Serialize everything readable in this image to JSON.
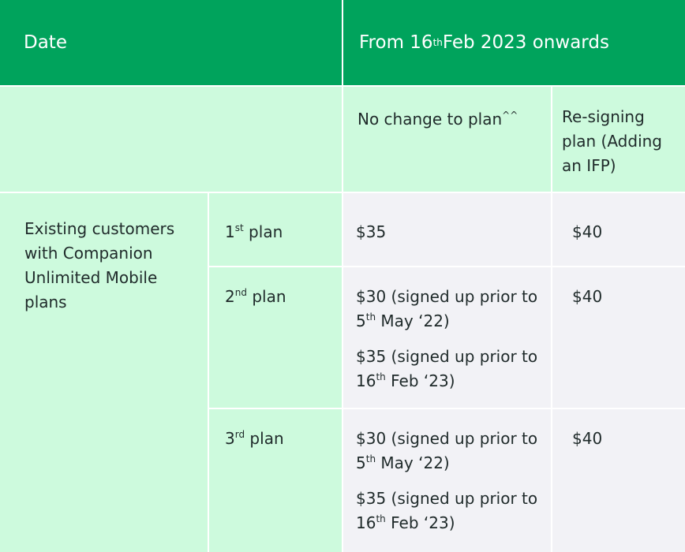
{
  "header": {
    "date": [
      {
        "text": "Date"
      }
    ],
    "period": [
      {
        "text": "From 16"
      },
      {
        "text": "th",
        "sup": true
      },
      {
        "text": " Feb 2023 onwards"
      }
    ]
  },
  "subheader": {
    "no_change": [
      {
        "text": "No change to plan"
      },
      {
        "text": "^^",
        "sup": true
      }
    ],
    "resigning": [
      {
        "text": "Re-signing plan (Adding an IFP)"
      }
    ]
  },
  "group": [
    {
      "text": "Existing customers with Companion Unlimited Mobile plans"
    }
  ],
  "rows": [
    {
      "plan": [
        {
          "text": "1"
        },
        {
          "text": "st",
          "sup": true
        },
        {
          "text": " plan"
        }
      ],
      "no_change": [
        [
          {
            "text": "$35"
          }
        ]
      ],
      "resigning": [
        {
          "text": "$40"
        }
      ]
    },
    {
      "plan": [
        {
          "text": "2"
        },
        {
          "text": "nd",
          "sup": true
        },
        {
          "text": " plan"
        }
      ],
      "no_change": [
        [
          {
            "text": "$30 (signed up prior to 5"
          },
          {
            "text": "th",
            "sup": true
          },
          {
            "text": " May ‘22)"
          }
        ],
        [
          {
            "text": "$35 (signed up prior to 16"
          },
          {
            "text": "th",
            "sup": true
          },
          {
            "text": " Feb ‘23)"
          }
        ]
      ],
      "resigning": [
        {
          "text": "$40"
        }
      ]
    },
    {
      "plan": [
        {
          "text": "3"
        },
        {
          "text": "rd",
          "sup": true
        },
        {
          "text": " plan"
        }
      ],
      "no_change": [
        [
          {
            "text": "$30 (signed up prior to 5"
          },
          {
            "text": "th",
            "sup": true
          },
          {
            "text": " May ‘22)"
          }
        ],
        [
          {
            "text": "$35 (signed up prior to 16"
          },
          {
            "text": "th",
            "sup": true
          },
          {
            "text": " Feb ‘23)"
          }
        ]
      ],
      "resigning": [
        {
          "text": "$40"
        }
      ]
    }
  ]
}
